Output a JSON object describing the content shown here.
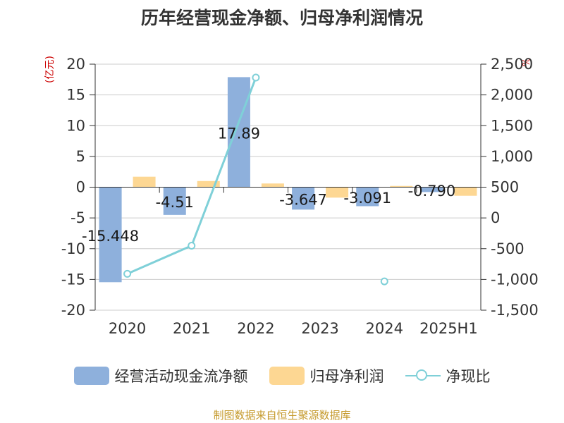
{
  "title": "历年经营现金净额、归母净利润情况",
  "left_unit": "(亿元)",
  "right_unit": "%",
  "source": "制图数据来自恒生聚源数据库",
  "colors": {
    "cash": "#8eb0dc",
    "profit": "#fdd793",
    "ratio": "#7fd0d8",
    "unit": "#cc0000",
    "source": "#c59a2c"
  },
  "chart_data": {
    "type": "bar",
    "categories": [
      "2020",
      "2021",
      "2022",
      "2023",
      "2024",
      "2025H1"
    ],
    "series": [
      {
        "name": "经营活动现金流净额",
        "type": "bar",
        "axis": "left",
        "values": [
          -15.448,
          -4.51,
          17.89,
          -3.647,
          -3.091,
          -0.79
        ],
        "labels": [
          "-15.448",
          "-4.51",
          "17.89",
          "-3.647",
          "-3.091",
          "-0.790"
        ]
      },
      {
        "name": "归母净利润",
        "type": "bar",
        "axis": "left",
        "values": [
          1.7,
          1.0,
          0.6,
          -1.7,
          0.2,
          -1.4
        ]
      },
      {
        "name": "净现比",
        "type": "line",
        "axis": "right",
        "values": [
          -908,
          -451,
          2282,
          null,
          -1031,
          null
        ]
      }
    ],
    "left_axis": {
      "range": [
        -20,
        20
      ],
      "ticks": [
        20,
        15,
        10,
        5,
        0,
        -5,
        -10,
        -15,
        -20
      ],
      "tick_labels": [
        "20",
        "15",
        "10",
        "5",
        "0",
        "-5",
        "-10",
        "-15",
        "-20"
      ]
    },
    "right_axis": {
      "range": [
        -1500,
        2500
      ],
      "ticks": [
        2500,
        2000,
        1500,
        1000,
        500,
        0,
        -500,
        -1000,
        -1500
      ],
      "tick_labels": [
        "2,500",
        "2,000",
        "1,500",
        "1,000",
        "500",
        "0",
        "-500",
        "-1,000",
        "-1,500"
      ]
    },
    "grid": true,
    "legend_position": "bottom"
  }
}
